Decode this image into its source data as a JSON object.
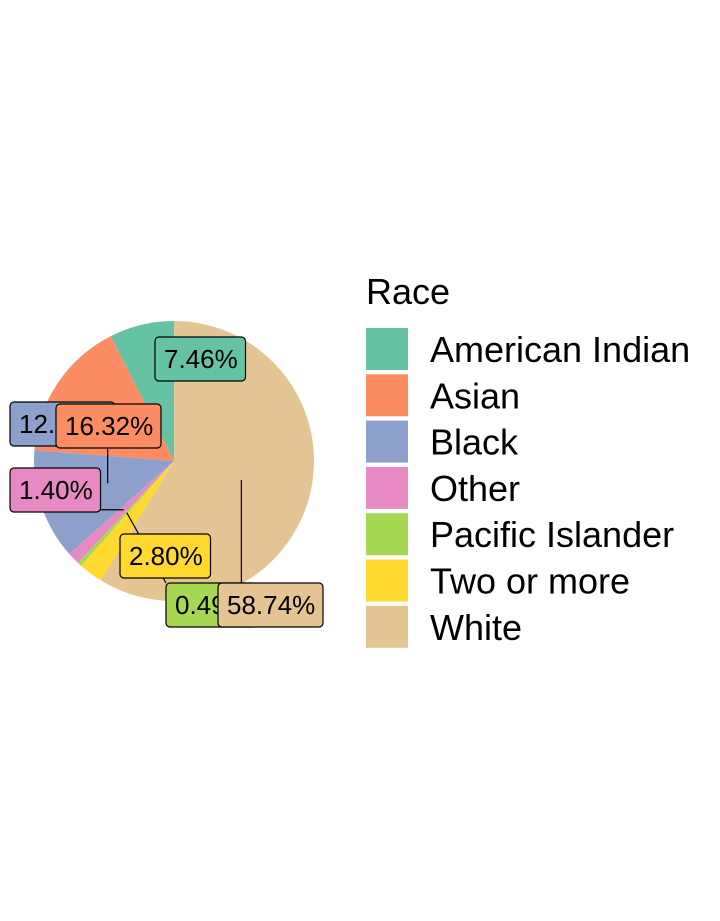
{
  "chart_data": {
    "type": "pie",
    "title": "",
    "legend_title": "Race",
    "legend_position": "right",
    "slices": [
      {
        "name": "American Indian",
        "value": 7.46,
        "label": "7.46%",
        "color": "#66C2A5"
      },
      {
        "name": "Asian",
        "value": 16.32,
        "label": "16.32%",
        "color": "#FC8D62"
      },
      {
        "name": "Black",
        "value": 12.78,
        "label": "12.78%",
        "color": "#8DA0CB"
      },
      {
        "name": "Other",
        "value": 1.4,
        "label": "1.40%",
        "color": "#E78AC3"
      },
      {
        "name": "Pacific Islander",
        "value": 0.49,
        "label": "0.49%",
        "color": "#A6D854"
      },
      {
        "name": "Two or more",
        "value": 2.8,
        "label": "2.80%",
        "color": "#FFD92F"
      },
      {
        "name": "White",
        "value": 58.74,
        "label": "58.74%",
        "color": "#E5C494"
      }
    ]
  }
}
